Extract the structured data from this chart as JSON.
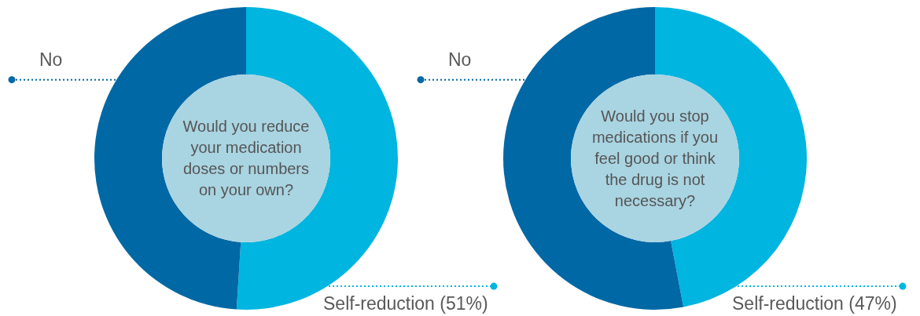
{
  "chart_data": [
    {
      "type": "donut",
      "title": "Would you reduce your medication doses or numbers on your own?",
      "categories": [
        "Self-reduction (51%)",
        "No"
      ],
      "values": [
        51,
        49
      ],
      "colors": [
        "#00b5e0",
        "#0068a5"
      ]
    },
    {
      "type": "donut",
      "title": "Would you stop medications if you feel good or think the drug is not necessary?",
      "categories": [
        "Self-reduction (47%)",
        "No"
      ],
      "values": [
        47,
        53
      ],
      "colors": [
        "#00b5e0",
        "#0068a5"
      ]
    }
  ]
}
